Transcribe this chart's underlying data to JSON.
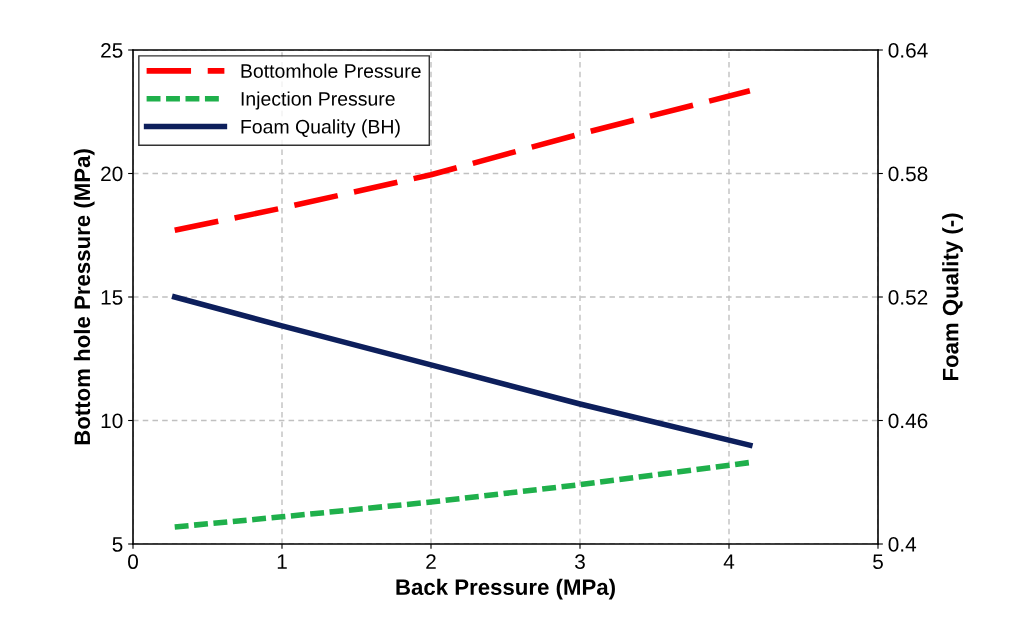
{
  "chart_data": {
    "type": "line",
    "xlabel": "Back Pressure (MPa)",
    "ylabel": "Bottom hole Pressure (MPa)",
    "y2label": "Foam Quality (-)",
    "xlim": [
      0,
      5
    ],
    "xticks": [
      0,
      1,
      2,
      3,
      4,
      5
    ],
    "ylim": [
      5,
      25
    ],
    "yticks": [
      5,
      10,
      15,
      20,
      25
    ],
    "y2lim": [
      0.4,
      0.64
    ],
    "y2ticks": [
      {
        "value": 0.4,
        "label": "0.4"
      },
      0.46,
      0.52,
      0.58,
      0.64
    ],
    "grid": true,
    "legend": "top left",
    "marker": "none",
    "series": [
      {
        "name": "Bottomhole Pressure",
        "color": "#ff0000",
        "line_style": "dashed",
        "x": [
          0.28,
          1,
          2,
          3,
          4.14
        ],
        "values": [
          17.7,
          18.6,
          19.95,
          21.6,
          23.35
        ]
      },
      {
        "name": "Injection Pressure",
        "color": "#1fb04b",
        "line_style": "dashed",
        "x": [
          0.28,
          1,
          2,
          3,
          4.14
        ],
        "values": [
          5.69,
          6.1,
          6.7,
          7.4,
          8.3
        ]
      },
      {
        "name": "Foam Quality (BH)",
        "color": "#0d1f5c",
        "line_style": "solid",
        "axis": "y2",
        "x": [
          0.28,
          1,
          2,
          3,
          4.14
        ],
        "values": [
          0.52,
          0.506,
          0.487,
          0.468,
          0.448
        ]
      }
    ]
  }
}
